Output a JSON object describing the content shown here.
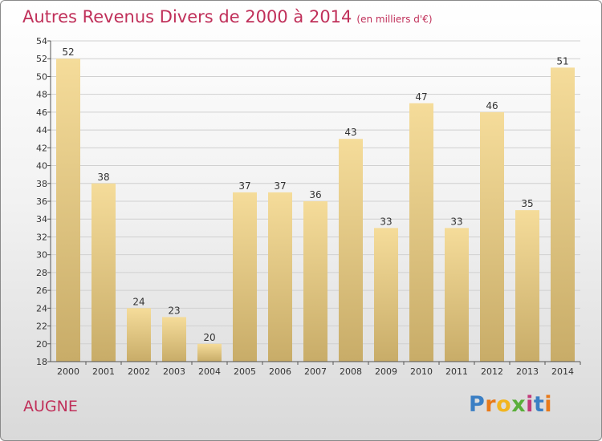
{
  "title": {
    "main": "Autres Revenus Divers de 2000 à 2014",
    "unit": "(en milliers d'€)"
  },
  "commune": "AUGNE",
  "logo": {
    "text": "Proxiti",
    "icon": "proxiti-logo"
  },
  "colors": {
    "title": "#c0305a",
    "bar_light": "#f5dc9a",
    "bar_dark": "#c8ac68",
    "gridline": "#d0d0d0"
  },
  "chart_data": {
    "type": "bar",
    "categories": [
      "2000",
      "2001",
      "2002",
      "2003",
      "2004",
      "2005",
      "2006",
      "2007",
      "2008",
      "2009",
      "2010",
      "2011",
      "2012",
      "2013",
      "2014"
    ],
    "values": [
      52,
      38,
      24,
      23,
      20,
      37,
      37,
      36,
      43,
      33,
      47,
      33,
      46,
      35,
      51
    ],
    "ylim": [
      18,
      54
    ],
    "yticks": [
      18,
      20,
      22,
      24,
      26,
      28,
      30,
      32,
      34,
      36,
      38,
      40,
      42,
      44,
      46,
      48,
      50,
      52,
      54
    ],
    "data_labels": true,
    "grid": true
  }
}
